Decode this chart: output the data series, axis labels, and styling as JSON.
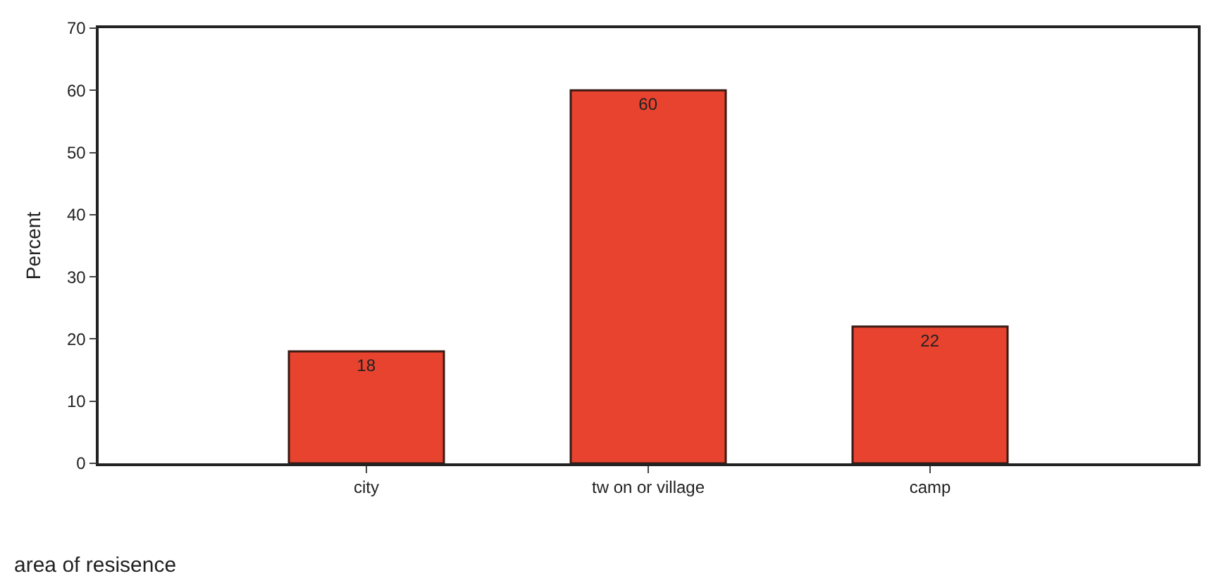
{
  "chart_data": {
    "type": "bar",
    "xlabel": "area of resisence",
    "ylabel": "Percent",
    "categories": [
      "city",
      "tw on or village",
      "camp"
    ],
    "values": [
      18,
      60,
      22
    ],
    "color": "#e8432f",
    "ylim": [
      0,
      70
    ],
    "yticks": [
      0,
      10,
      20,
      30,
      40,
      50,
      60,
      70
    ],
    "data_labels": true
  }
}
